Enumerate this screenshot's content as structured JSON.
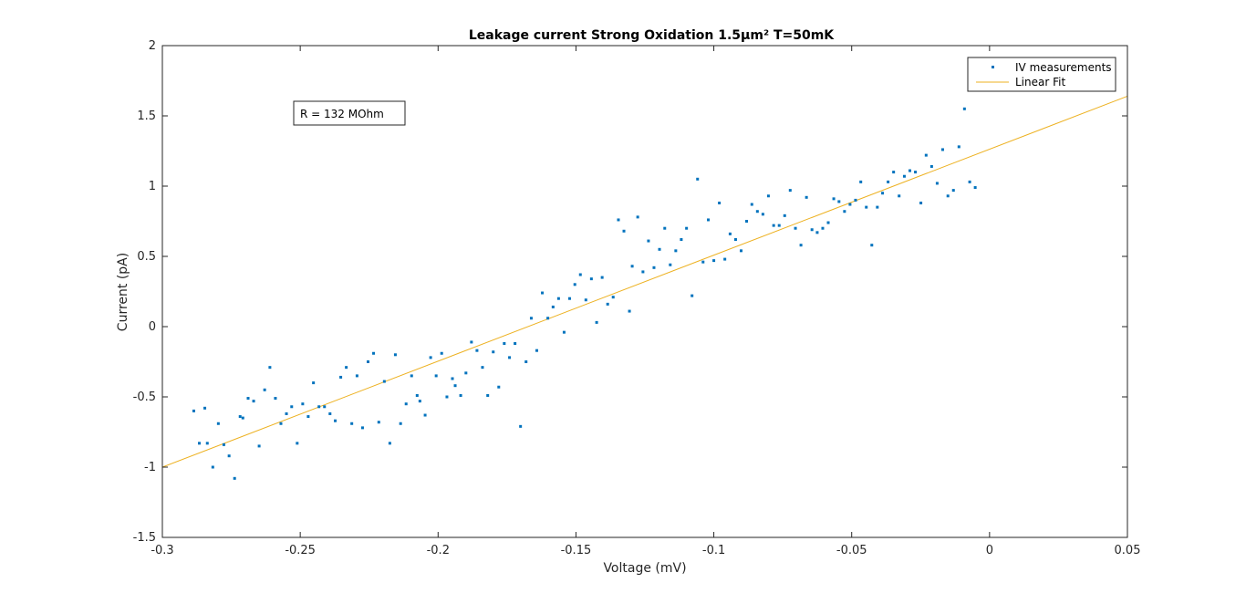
{
  "chart_data": {
    "type": "scatter",
    "title": "Leakage current Strong Oxidation 1.5µm² T=50mK",
    "xlabel": "Voltage (mV)",
    "ylabel": "Current (pA)",
    "xlim": [
      -0.3,
      0.05
    ],
    "ylim": [
      -1.5,
      2
    ],
    "xticks": [
      -0.3,
      -0.25,
      -0.2,
      -0.15,
      -0.1,
      -0.05,
      0,
      0.05
    ],
    "xtick_labels": [
      "-0.3",
      "-0.25",
      "-0.2",
      "-0.15",
      "-0.1",
      "-0.05",
      "0",
      "0.05"
    ],
    "yticks": [
      -1.5,
      -1,
      -0.5,
      0,
      0.5,
      1,
      1.5,
      2
    ],
    "ytick_labels": [
      "-1.5",
      "-1",
      "-0.5",
      "0",
      "0.5",
      "1",
      "1.5",
      "2"
    ],
    "grid": false,
    "legend_position": "top-right",
    "annotation": "R = 132 MOhm",
    "colors": {
      "measurements": "#0072BD",
      "fit": "#EDB120"
    },
    "series": [
      {
        "name": "IV measurements",
        "style": "points",
        "points": [
          [
            -0.2886,
            -0.6
          ],
          [
            -0.2866,
            -0.83
          ],
          [
            -0.2846,
            -0.58
          ],
          [
            -0.2837,
            -0.83
          ],
          [
            -0.2817,
            -1.0
          ],
          [
            -0.2797,
            -0.69
          ],
          [
            -0.2777,
            -0.84
          ],
          [
            -0.2758,
            -0.92
          ],
          [
            -0.2738,
            -1.08
          ],
          [
            -0.2718,
            -0.64
          ],
          [
            -0.2708,
            -0.65
          ],
          [
            -0.2689,
            -0.51
          ],
          [
            -0.2669,
            -0.53
          ],
          [
            -0.2649,
            -0.85
          ],
          [
            -0.2629,
            -0.45
          ],
          [
            -0.261,
            -0.29
          ],
          [
            -0.259,
            -0.51
          ],
          [
            -0.257,
            -0.69
          ],
          [
            -0.255,
            -0.62
          ],
          [
            -0.2531,
            -0.57
          ],
          [
            -0.2511,
            -0.83
          ],
          [
            -0.2491,
            -0.55
          ],
          [
            -0.2471,
            -0.64
          ],
          [
            -0.2452,
            -0.4
          ],
          [
            -0.2432,
            -0.57
          ],
          [
            -0.2412,
            -0.57
          ],
          [
            -0.2392,
            -0.62
          ],
          [
            -0.2373,
            -0.67
          ],
          [
            -0.2353,
            -0.36
          ],
          [
            -0.2333,
            -0.29
          ],
          [
            -0.2313,
            -0.69
          ],
          [
            -0.2294,
            -0.35
          ],
          [
            -0.2274,
            -0.72
          ],
          [
            -0.2254,
            -0.25
          ],
          [
            -0.2234,
            -0.19
          ],
          [
            -0.2215,
            -0.68
          ],
          [
            -0.2195,
            -0.39
          ],
          [
            -0.2175,
            -0.83
          ],
          [
            -0.2155,
            -0.2
          ],
          [
            -0.2136,
            -0.69
          ],
          [
            -0.2116,
            -0.55
          ],
          [
            -0.2096,
            -0.35
          ],
          [
            -0.2076,
            -0.49
          ],
          [
            -0.2066,
            -0.53
          ],
          [
            -0.2047,
            -0.63
          ],
          [
            -0.2027,
            -0.22
          ],
          [
            -0.2007,
            -0.35
          ],
          [
            -0.1987,
            -0.19
          ],
          [
            -0.1968,
            -0.5
          ],
          [
            -0.1948,
            -0.37
          ],
          [
            -0.1938,
            -0.42
          ],
          [
            -0.1918,
            -0.49
          ],
          [
            -0.1899,
            -0.33
          ],
          [
            -0.1879,
            -0.11
          ],
          [
            -0.1859,
            -0.17
          ],
          [
            -0.1839,
            -0.29
          ],
          [
            -0.182,
            -0.49
          ],
          [
            -0.18,
            -0.18
          ],
          [
            -0.178,
            -0.43
          ],
          [
            -0.176,
            -0.12
          ],
          [
            -0.1741,
            -0.22
          ],
          [
            -0.1721,
            -0.12
          ],
          [
            -0.1701,
            -0.71
          ],
          [
            -0.1681,
            -0.25
          ],
          [
            -0.1662,
            0.06
          ],
          [
            -0.1642,
            -0.17
          ],
          [
            -0.1622,
            0.24
          ],
          [
            -0.1602,
            0.06
          ],
          [
            -0.1583,
            0.14
          ],
          [
            -0.1563,
            0.2
          ],
          [
            -0.1543,
            -0.04
          ],
          [
            -0.1523,
            0.2
          ],
          [
            -0.1504,
            0.3
          ],
          [
            -0.1484,
            0.37
          ],
          [
            -0.1464,
            0.19
          ],
          [
            -0.1444,
            0.34
          ],
          [
            -0.1425,
            0.03
          ],
          [
            -0.1405,
            0.35
          ],
          [
            -0.1385,
            0.16
          ],
          [
            -0.1365,
            0.21
          ],
          [
            -0.1346,
            0.76
          ],
          [
            -0.1326,
            0.68
          ],
          [
            -0.1306,
            0.11
          ],
          [
            -0.1296,
            0.43
          ],
          [
            -0.1276,
            0.78
          ],
          [
            -0.1257,
            0.39
          ],
          [
            -0.1237,
            0.61
          ],
          [
            -0.1217,
            0.42
          ],
          [
            -0.1197,
            0.55
          ],
          [
            -0.1178,
            0.7
          ],
          [
            -0.1158,
            0.44
          ],
          [
            -0.1138,
            0.54
          ],
          [
            -0.1118,
            0.62
          ],
          [
            -0.1099,
            0.7
          ],
          [
            -0.1079,
            0.22
          ],
          [
            -0.1059,
            1.05
          ],
          [
            -0.1039,
            0.46
          ],
          [
            -0.102,
            0.76
          ],
          [
            -0.1,
            0.47
          ],
          [
            -0.098,
            0.88
          ],
          [
            -0.096,
            0.48
          ],
          [
            -0.0941,
            0.66
          ],
          [
            -0.0921,
            0.62
          ],
          [
            -0.0901,
            0.54
          ],
          [
            -0.0881,
            0.75
          ],
          [
            -0.0862,
            0.87
          ],
          [
            -0.0842,
            0.82
          ],
          [
            -0.0822,
            0.8
          ],
          [
            -0.0802,
            0.93
          ],
          [
            -0.0783,
            0.72
          ],
          [
            -0.0763,
            0.72
          ],
          [
            -0.0743,
            0.79
          ],
          [
            -0.0723,
            0.97
          ],
          [
            -0.0704,
            0.7
          ],
          [
            -0.0684,
            0.58
          ],
          [
            -0.0664,
            0.92
          ],
          [
            -0.0644,
            0.69
          ],
          [
            -0.0625,
            0.67
          ],
          [
            -0.0605,
            0.7
          ],
          [
            -0.0585,
            0.74
          ],
          [
            -0.0565,
            0.91
          ],
          [
            -0.0546,
            0.89
          ],
          [
            -0.0526,
            0.82
          ],
          [
            -0.0506,
            0.87
          ],
          [
            -0.0486,
            0.9
          ],
          [
            -0.0467,
            1.03
          ],
          [
            -0.0447,
            0.85
          ],
          [
            -0.0427,
            0.58
          ],
          [
            -0.0407,
            0.85
          ],
          [
            -0.0388,
            0.95
          ],
          [
            -0.0368,
            1.03
          ],
          [
            -0.0348,
            1.1
          ],
          [
            -0.0328,
            0.93
          ],
          [
            -0.0309,
            1.07
          ],
          [
            -0.0289,
            1.11
          ],
          [
            -0.0269,
            1.1
          ],
          [
            -0.0249,
            0.88
          ],
          [
            -0.023,
            1.22
          ],
          [
            -0.021,
            1.14
          ],
          [
            -0.019,
            1.02
          ],
          [
            -0.017,
            1.26
          ],
          [
            -0.0151,
            0.93
          ],
          [
            -0.0131,
            0.97
          ],
          [
            -0.0111,
            1.28
          ],
          [
            -0.0091,
            1.55
          ],
          [
            -0.0072,
            1.03
          ],
          [
            -0.0052,
            0.99
          ]
        ]
      },
      {
        "name": "Linear Fit",
        "style": "line",
        "points": [
          [
            -0.3,
            -1.0
          ],
          [
            0.05,
            1.64
          ]
        ]
      }
    ]
  }
}
